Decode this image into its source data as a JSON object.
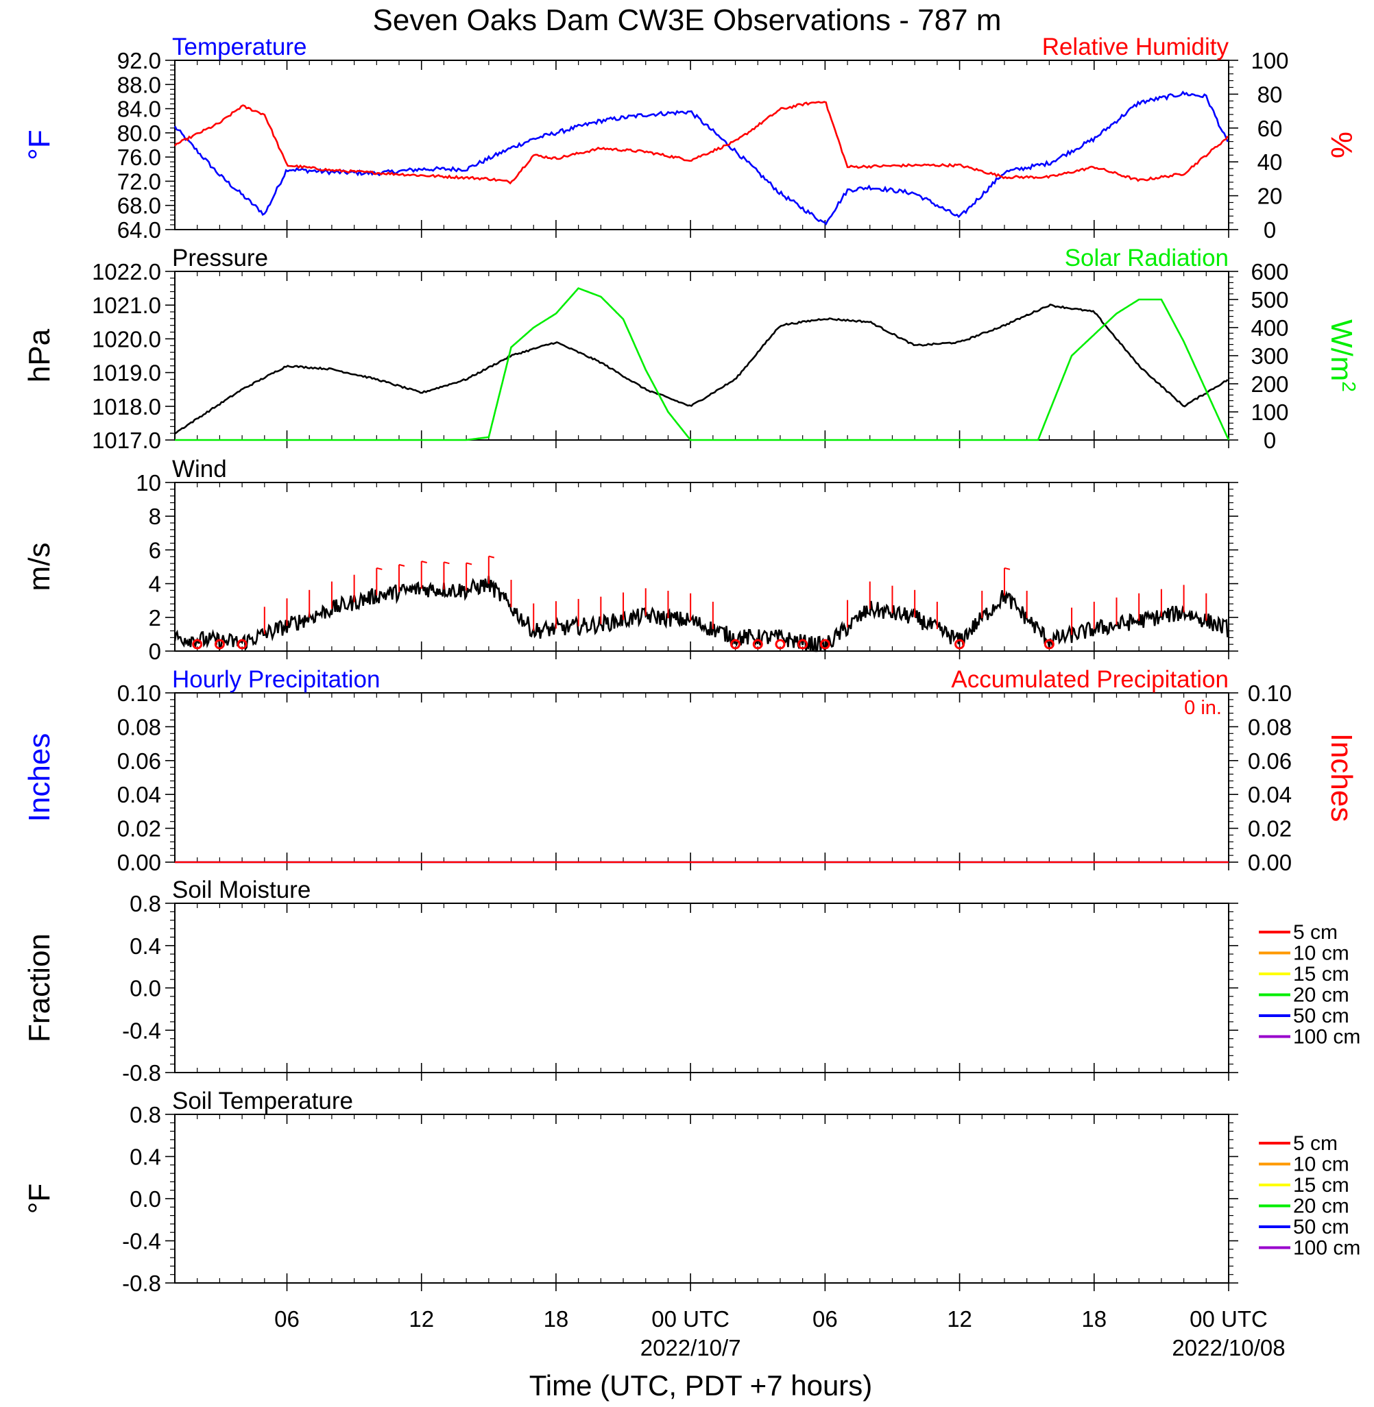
{
  "title": "Seven Oaks Dam CW3E Observations - 787 m",
  "x_axis": {
    "label": "Time (UTC, PDT +7 hours)",
    "ticks": [
      "06",
      "12",
      "18",
      "00 UTC",
      "06",
      "12",
      "18",
      "00 UTC"
    ],
    "dates": [
      "2022/10/7",
      "2022/10/08"
    ]
  },
  "colors": {
    "temperature": "#0000ff",
    "humidity": "#ff0000",
    "pressure": "#000000",
    "solar": "#00ee00",
    "wind": "#000000",
    "barb": "#ff0000"
  },
  "panels": {
    "temp_rh": {
      "left_title": "Temperature",
      "right_title": "Relative Humidity",
      "left_unit": "°F",
      "right_unit": "%",
      "left_ticks": [
        "92.0",
        "88.0",
        "84.0",
        "80.0",
        "76.0",
        "72.0",
        "68.0",
        "64.0"
      ],
      "right_ticks": [
        "100",
        "80",
        "60",
        "40",
        "20",
        "0"
      ]
    },
    "pressure": {
      "left_title": "Pressure",
      "right_title": "Solar Radiation",
      "left_unit": "hPa",
      "right_unit": "W/m",
      "right_unit_sup": "2",
      "left_ticks": [
        "1022.0",
        "1021.0",
        "1020.0",
        "1019.0",
        "1018.0",
        "1017.0"
      ],
      "right_ticks": [
        "600",
        "500",
        "400",
        "300",
        "200",
        "100",
        "0"
      ]
    },
    "wind": {
      "left_title": "Wind",
      "left_unit": "m/s",
      "left_ticks": [
        "10",
        "8",
        "6",
        "4",
        "2",
        "0"
      ]
    },
    "precip": {
      "left_title": "Hourly Precipitation",
      "right_title": "Accumulated Precipitation",
      "total_label": "0 in.",
      "left_unit": "Inches",
      "right_unit": "Inches",
      "left_ticks": [
        "0.10",
        "0.08",
        "0.06",
        "0.04",
        "0.02",
        "0.00"
      ],
      "right_ticks": [
        "0.10",
        "0.08",
        "0.06",
        "0.04",
        "0.02",
        "0.00"
      ]
    },
    "soil_moisture": {
      "left_title": "Soil Moisture",
      "left_unit": "Fraction",
      "left_ticks": [
        "0.8",
        "0.4",
        "0.0",
        "-0.4",
        "-0.8"
      ],
      "legend": [
        "5 cm",
        "10 cm",
        "15 cm",
        "20 cm",
        "50 cm",
        "100 cm"
      ]
    },
    "soil_temp": {
      "left_title": "Soil Temperature",
      "left_unit": "°F",
      "left_ticks": [
        "0.8",
        "0.4",
        "0.0",
        "-0.4",
        "-0.8"
      ],
      "legend": [
        "5 cm",
        "10 cm",
        "15 cm",
        "20 cm",
        "50 cm",
        "100 cm"
      ]
    }
  },
  "legend_colors": [
    "#ff0000",
    "#ff9900",
    "#ffff00",
    "#00ee00",
    "#0000ff",
    "#9900cc"
  ],
  "chart_data": [
    {
      "type": "line",
      "title": "Temperature",
      "x": [
        "2022-10-06 01:00",
        "2022-10-06 03:00",
        "2022-10-06 05:00",
        "2022-10-06 06:00",
        "2022-10-06 08:00",
        "2022-10-06 10:00",
        "2022-10-06 12:00",
        "2022-10-06 14:00",
        "2022-10-06 16:00",
        "2022-10-06 17:00",
        "2022-10-06 18:00",
        "2022-10-06 20:00",
        "2022-10-06 22:00",
        "2022-10-07 00:00",
        "2022-10-07 02:00",
        "2022-10-07 04:00",
        "2022-10-07 06:00",
        "2022-10-07 07:00",
        "2022-10-07 08:00",
        "2022-10-07 10:00",
        "2022-10-07 12:00",
        "2022-10-07 14:00",
        "2022-10-07 16:00",
        "2022-10-07 18:00",
        "2022-10-07 20:00",
        "2022-10-07 22:00",
        "2022-10-07 23:00",
        "2022-10-08 00:00"
      ],
      "y": [
        81.0,
        73.0,
        66.5,
        74.0,
        73.5,
        73.3,
        74.0,
        74.0,
        77.5,
        79.0,
        80.0,
        82.0,
        83.0,
        83.5,
        77.0,
        70.0,
        65.0,
        70.5,
        71.0,
        70.0,
        66.0,
        73.5,
        75.0,
        79.0,
        85.0,
        86.5,
        86.0,
        78.0
      ],
      "ylim": [
        64.0,
        92.0
      ]
    },
    {
      "type": "line",
      "title": "Relative Humidity",
      "x": [
        "2022-10-06 01:00",
        "2022-10-06 03:00",
        "2022-10-06 04:00",
        "2022-10-06 05:00",
        "2022-10-06 06:00",
        "2022-10-06 08:00",
        "2022-10-06 12:00",
        "2022-10-06 15:00",
        "2022-10-06 16:00",
        "2022-10-06 17:00",
        "2022-10-06 18:00",
        "2022-10-06 20:00",
        "2022-10-06 22:00",
        "2022-10-07 00:00",
        "2022-10-07 02:00",
        "2022-10-07 04:00",
        "2022-10-07 05:00",
        "2022-10-07 06:00",
        "2022-10-07 07:00",
        "2022-10-07 10:00",
        "2022-10-07 12:00",
        "2022-10-07 14:00",
        "2022-10-07 16:00",
        "2022-10-07 18:00",
        "2022-10-07 20:00",
        "2022-10-07 22:00",
        "2022-10-08 00:00"
      ],
      "y": [
        50,
        63,
        73,
        68,
        38,
        35,
        32,
        30,
        28,
        44,
        42,
        48,
        46,
        41,
        52,
        71,
        74,
        76,
        37,
        38,
        38,
        31,
        31,
        37,
        29,
        33,
        55
      ],
      "ylim": [
        0,
        100
      ]
    },
    {
      "type": "line",
      "title": "Pressure",
      "x": [
        "2022-10-06 01:00",
        "2022-10-06 04:00",
        "2022-10-06 06:00",
        "2022-10-06 08:00",
        "2022-10-06 10:00",
        "2022-10-06 12:00",
        "2022-10-06 14:00",
        "2022-10-06 16:00",
        "2022-10-06 18:00",
        "2022-10-06 20:00",
        "2022-10-06 22:00",
        "2022-10-07 00:00",
        "2022-10-07 02:00",
        "2022-10-07 04:00",
        "2022-10-07 06:00",
        "2022-10-07 08:00",
        "2022-10-07 10:00",
        "2022-10-07 12:00",
        "2022-10-07 14:00",
        "2022-10-07 16:00",
        "2022-10-07 18:00",
        "2022-10-07 20:00",
        "2022-10-07 22:00",
        "2022-10-08 00:00"
      ],
      "y": [
        1017.2,
        1018.5,
        1019.2,
        1019.1,
        1018.8,
        1018.4,
        1018.8,
        1019.5,
        1019.9,
        1019.3,
        1018.5,
        1018.0,
        1018.8,
        1020.4,
        1020.6,
        1020.5,
        1019.8,
        1019.9,
        1020.4,
        1021.0,
        1020.8,
        1019.2,
        1018.0,
        1018.8
      ],
      "ylim": [
        1017.0,
        1022.0
      ]
    },
    {
      "type": "area",
      "title": "Solar Radiation",
      "x": [
        "2022-10-06 01:00",
        "2022-10-06 14:00",
        "2022-10-06 15:00",
        "2022-10-06 16:00",
        "2022-10-06 17:00",
        "2022-10-06 18:00",
        "2022-10-06 19:00",
        "2022-10-06 20:00",
        "2022-10-06 21:00",
        "2022-10-06 22:00",
        "2022-10-06 23:00",
        "2022-10-07 00:00",
        "2022-10-07 01:00",
        "2022-10-07 15:30",
        "2022-10-07 17:00",
        "2022-10-07 19:00",
        "2022-10-07 20:00",
        "2022-10-07 21:00",
        "2022-10-07 22:00",
        "2022-10-08 00:00"
      ],
      "y": [
        0,
        0,
        10,
        330,
        400,
        450,
        540,
        510,
        430,
        250,
        100,
        0,
        0,
        0,
        300,
        450,
        500,
        500,
        350,
        0
      ],
      "ylim": [
        0,
        600
      ]
    },
    {
      "type": "line",
      "title": "Wind",
      "x": [
        "2022-10-06 01:00",
        "2022-10-06 04:00",
        "2022-10-06 06:00",
        "2022-10-06 08:00",
        "2022-10-06 10:00",
        "2022-10-06 12:00",
        "2022-10-06 14:00",
        "2022-10-06 15:00",
        "2022-10-06 17:00",
        "2022-10-06 20:00",
        "2022-10-06 22:00",
        "2022-10-07 00:00",
        "2022-10-07 02:00",
        "2022-10-07 04:00",
        "2022-10-07 05:00",
        "2022-10-07 06:00",
        "2022-10-07 08:00",
        "2022-10-07 10:00",
        "2022-10-07 12:00",
        "2022-10-07 14:00",
        "2022-10-07 16:00",
        "2022-10-07 18:00",
        "2022-10-07 20:00",
        "2022-10-07 22:00",
        "2022-10-08 00:00"
      ],
      "y": [
        0.8,
        0.5,
        1.5,
        2.5,
        3.3,
        3.7,
        3.6,
        4.0,
        1.2,
        1.6,
        2.1,
        1.8,
        0.8,
        0.8,
        0.5,
        0.3,
        2.5,
        2.0,
        0.6,
        3.3,
        0.6,
        1.3,
        1.8,
        2.3,
        1.3
      ],
      "ylim": [
        0,
        10
      ]
    },
    {
      "type": "line",
      "title": "Hourly Precipitation",
      "x": [
        "2022-10-06 01:00",
        "2022-10-08 00:00"
      ],
      "y": [
        0.0,
        0.0
      ],
      "ylim": [
        0.0,
        0.1
      ]
    },
    {
      "type": "line",
      "title": "Accumulated Precipitation",
      "x": [
        "2022-10-06 01:00",
        "2022-10-08 00:00"
      ],
      "y": [
        0.0,
        0.0
      ],
      "ylim": [
        0.0,
        0.1
      ]
    }
  ]
}
